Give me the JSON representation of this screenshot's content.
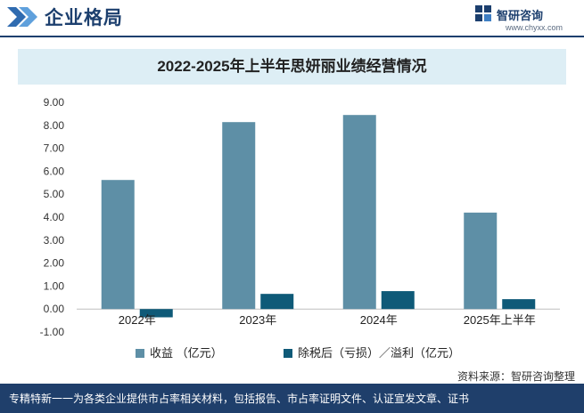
{
  "header": {
    "section_title": "企业格局",
    "brand_name": "智研咨询",
    "brand_url": "www.chyxx.com"
  },
  "colors": {
    "navy": "#1c3f6e",
    "series_revenue": "#5e8fa6",
    "series_profit": "#0f5a78",
    "title_band": "#ddeef5",
    "footer": "#1f3f6b"
  },
  "chart_data": {
    "type": "bar",
    "title": "2022-2025年上半年思妍丽业绩经营情况",
    "categories": [
      "2022年",
      "2023年",
      "2024年",
      "2025年上半年"
    ],
    "series": [
      {
        "name": "收益  （亿元）",
        "values": [
          5.62,
          8.14,
          8.45,
          4.2
        ]
      },
      {
        "name": "除税后（亏损）／溢利（亿元）",
        "values": [
          -0.36,
          0.66,
          0.78,
          0.43
        ]
      }
    ],
    "ylim": [
      -1,
      9
    ],
    "yticks": [
      "9.00",
      "8.00",
      "7.00",
      "6.00",
      "5.00",
      "4.00",
      "3.00",
      "2.00",
      "1.00",
      "0.00",
      "-1.00"
    ],
    "grid": false,
    "legend_position": "bottom"
  },
  "source": "资料来源：智研咨询整理",
  "footer_text": "专精特新一一为各类企业提供市占率相关材料，包括报告、市占率证明文件、认证宣发文章、证书"
}
